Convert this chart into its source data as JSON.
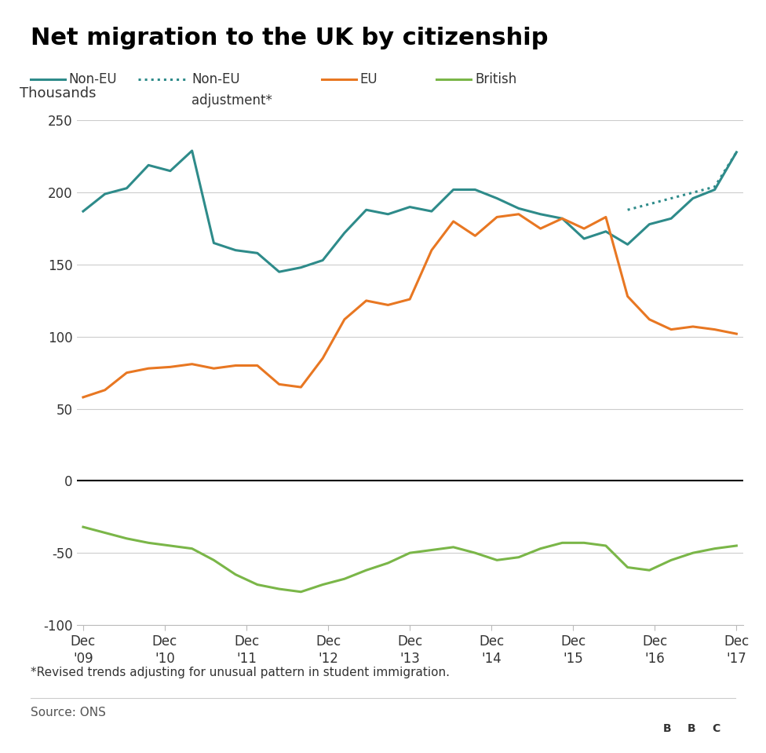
{
  "title": "Net migration to the UK by citizenship",
  "ylabel": "Thousands",
  "footnote": "*Revised trends adjusting for unusual pattern in student immigration.",
  "source": "Source: ONS",
  "ylim": [
    -100,
    250
  ],
  "yticks": [
    -100,
    -50,
    0,
    50,
    100,
    150,
    200,
    250
  ],
  "x_labels": [
    "Dec\n'09",
    "Dec\n'10",
    "Dec\n'11",
    "Dec\n'12",
    "Dec\n'13",
    "Dec\n'14",
    "Dec\n'15",
    "Dec\n'16",
    "Dec\n'17"
  ],
  "non_eu_color": "#2E8B8A",
  "non_eu_adj_color": "#2E8B8A",
  "eu_color": "#E87722",
  "british_color": "#7AB648",
  "non_eu": [
    187,
    199,
    203,
    219,
    215,
    229,
    165,
    160,
    158,
    145,
    148,
    153,
    172,
    188,
    185,
    190,
    187,
    202,
    202,
    196,
    189,
    185,
    182,
    168,
    173,
    164,
    178,
    182,
    196,
    202,
    228
  ],
  "non_eu_adj": [
    null,
    null,
    null,
    null,
    null,
    null,
    null,
    null,
    null,
    null,
    null,
    null,
    null,
    null,
    null,
    null,
    null,
    null,
    null,
    null,
    null,
    null,
    null,
    null,
    null,
    188,
    192,
    196,
    200,
    204,
    228
  ],
  "eu": [
    58,
    63,
    75,
    78,
    79,
    81,
    78,
    80,
    80,
    67,
    65,
    85,
    112,
    125,
    122,
    126,
    160,
    180,
    170,
    183,
    185,
    175,
    182,
    175,
    183,
    128,
    112,
    105,
    107,
    105,
    102
  ],
  "british": [
    -32,
    -36,
    -40,
    -43,
    -45,
    -47,
    -55,
    -65,
    -72,
    -75,
    -77,
    -72,
    -68,
    -62,
    -57,
    -50,
    -48,
    -46,
    -50,
    -55,
    -53,
    -47,
    -43,
    -43,
    -45,
    -60,
    -62,
    -55,
    -50,
    -47,
    -45
  ],
  "n_points": 31
}
